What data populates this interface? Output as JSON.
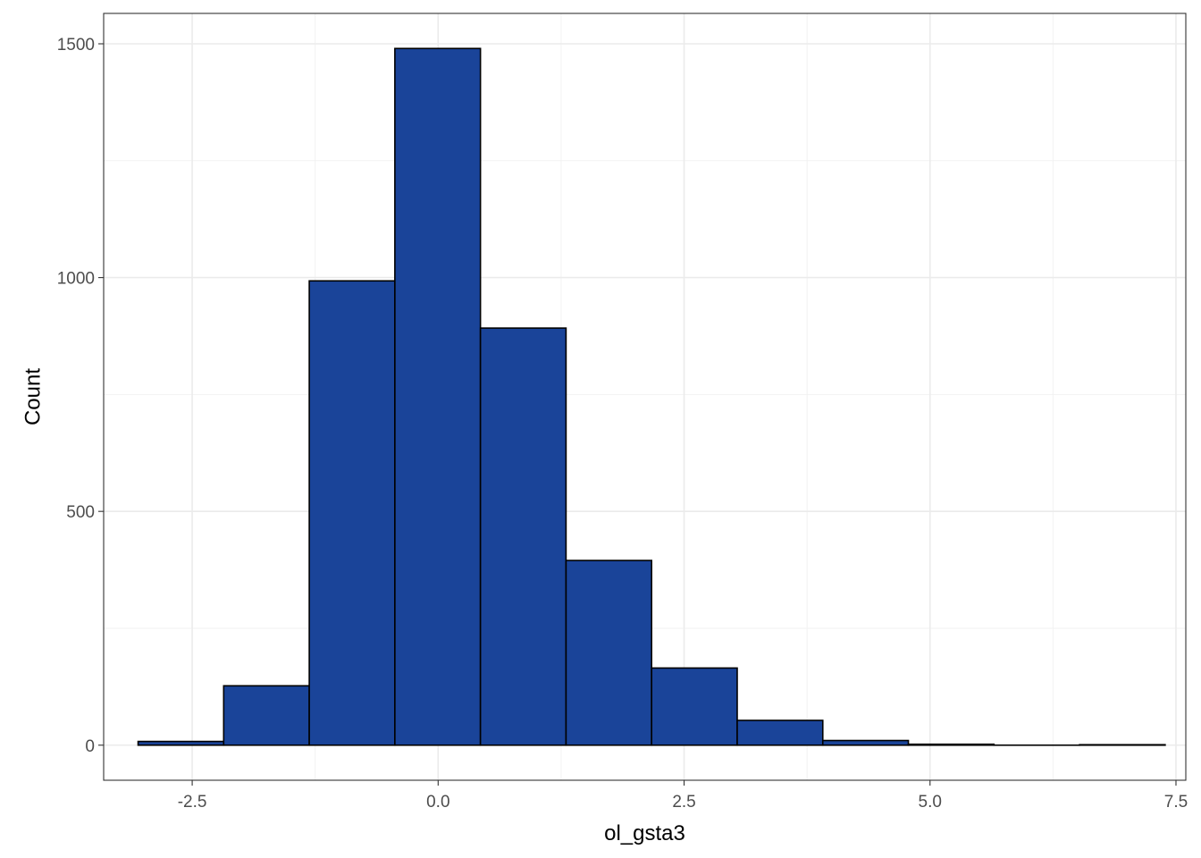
{
  "chart_data": {
    "type": "bar",
    "subtype": "histogram",
    "title": "",
    "xlabel": "ol_gsta3",
    "ylabel": "Count",
    "xlim": [
      -3.4,
      7.6
    ],
    "ylim": [
      -75,
      1565
    ],
    "x_ticks": [
      -2.5,
      0.0,
      2.5,
      5.0,
      7.5
    ],
    "x_tick_labels": [
      "-2.5",
      "0.0",
      "2.5",
      "5.0",
      "7.5"
    ],
    "y_ticks": [
      0,
      500,
      1000,
      1500
    ],
    "y_tick_labels": [
      "0",
      "500",
      "1000",
      "1500"
    ],
    "grid": true,
    "legend": "none",
    "bar_fill": "#1a4499",
    "bar_outline": "#000000",
    "bins": [
      {
        "x0": -3.05,
        "x1": -2.18,
        "count": 8
      },
      {
        "x0": -2.18,
        "x1": -1.31,
        "count": 127
      },
      {
        "x0": -1.31,
        "x1": -0.44,
        "count": 993
      },
      {
        "x0": -0.44,
        "x1": 0.43,
        "count": 1490
      },
      {
        "x0": 0.43,
        "x1": 1.3,
        "count": 892
      },
      {
        "x0": 1.3,
        "x1": 2.17,
        "count": 395
      },
      {
        "x0": 2.17,
        "x1": 3.04,
        "count": 165
      },
      {
        "x0": 3.04,
        "x1": 3.91,
        "count": 53
      },
      {
        "x0": 3.91,
        "x1": 4.78,
        "count": 10
      },
      {
        "x0": 4.78,
        "x1": 5.65,
        "count": 2
      },
      {
        "x0": 5.65,
        "x1": 6.52,
        "count": 0
      },
      {
        "x0": 6.52,
        "x1": 7.39,
        "count": 1
      }
    ]
  }
}
